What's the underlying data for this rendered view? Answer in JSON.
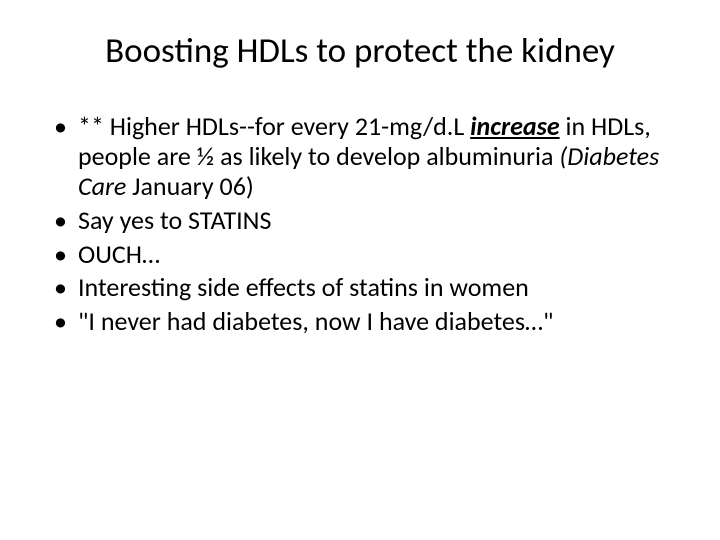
{
  "slide": {
    "title": "Boosting HDLs to protect the kidney",
    "bullets": [
      {
        "pre": "** Higher HDLs--for every 21-mg/d.L ",
        "emph": "increase",
        "mid": " in HDLs, people are ½ as likely to develop albuminuria ",
        "ital": "(Diabetes Care",
        "post": " January 06)"
      },
      {
        "text": "Say yes to STATINS"
      },
      {
        "text": "OUCH…"
      },
      {
        "text": "Interesting side effects of statins in women"
      },
      {
        "text": "\"I never had diabetes, now I have diabetes…\""
      }
    ],
    "colors": {
      "background": "#ffffff",
      "text": "#000000"
    },
    "fontsize": {
      "title": 35,
      "body": 26
    }
  }
}
